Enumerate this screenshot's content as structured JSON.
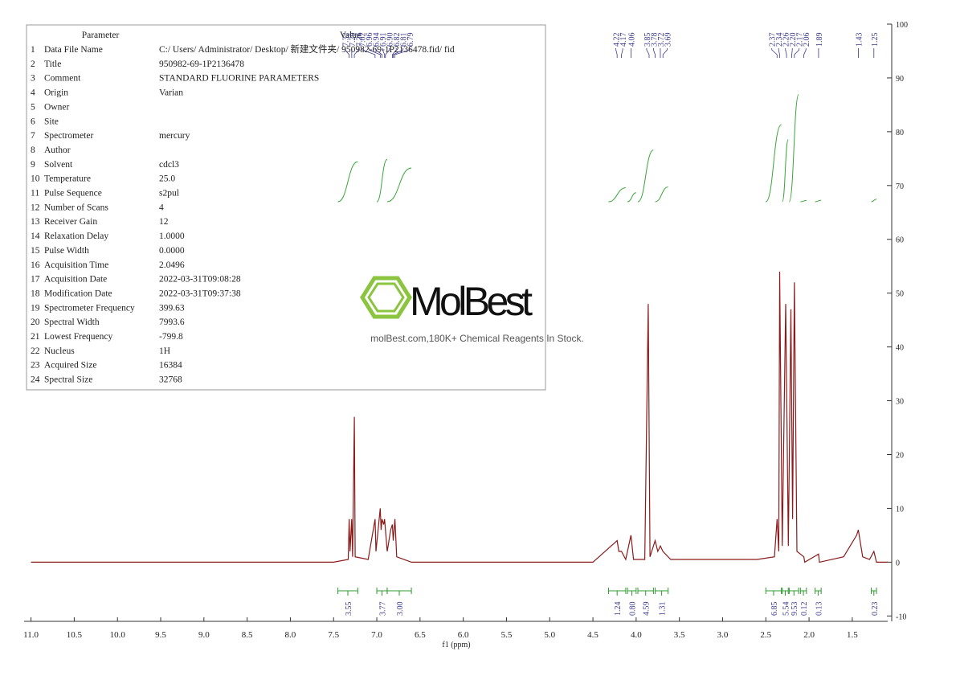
{
  "table": {
    "header": [
      "Parameter",
      "Value"
    ],
    "rows": [
      [
        "1",
        "Data File Name",
        "C:/ Users/ Administrator/ Desktop/ 新建文件夹/ 950982-69-1P2136478.fid/ fid"
      ],
      [
        "2",
        "Title",
        "950982-69-1P2136478"
      ],
      [
        "3",
        "Comment",
        "STANDARD FLUORINE PARAMETERS"
      ],
      [
        "4",
        "Origin",
        "Varian"
      ],
      [
        "5",
        "Owner"
      ],
      [
        "6",
        "Site"
      ],
      [
        "7",
        "Spectrometer",
        "mercury"
      ],
      [
        "8",
        "Author"
      ],
      [
        "9",
        "Solvent",
        "cdcl3"
      ],
      [
        "10",
        "Temperature",
        "25.0"
      ],
      [
        "11",
        "Pulse Sequence",
        "s2pul"
      ],
      [
        "12",
        "Number of Scans",
        "4"
      ],
      [
        "13",
        "Receiver Gain",
        "12"
      ],
      [
        "14",
        "Relaxation Delay",
        "1.0000"
      ],
      [
        "15",
        "Pulse Width",
        "0.0000"
      ],
      [
        "16",
        "Acquisition Time",
        "2.0496"
      ],
      [
        "17",
        "Acquisition Date",
        "2022-03-31T09:08:28"
      ],
      [
        "18",
        "Modification Date",
        "2022-03-31T09:37:38"
      ],
      [
        "19",
        "Spectrometer Frequency",
        "399.63"
      ],
      [
        "20",
        "Spectral Width",
        "7993.6"
      ],
      [
        "21",
        "Lowest Frequency",
        "-799.8"
      ],
      [
        "22",
        "Nucleus",
        "1H"
      ],
      [
        "23",
        "Acquired Size",
        "16384"
      ],
      [
        "24",
        "Spectral Size",
        "32768"
      ]
    ]
  },
  "watermark": {
    "logo": "MolBest",
    "text": "molBest.com,180K+ Chemical Reagents In Stock."
  },
  "chart_data": {
    "type": "line",
    "xlabel": "f1 (ppm)",
    "color": "#8b1a1a",
    "xlim": [
      11.08,
      1.09
    ],
    "ylim": [
      -11,
      100
    ],
    "xticks": [
      {
        "value": 11,
        "label": "11.0"
      },
      10.5,
      {
        "value": 10,
        "label": "10.0"
      },
      9.5,
      {
        "value": 9,
        "label": "9.0"
      },
      8.5,
      {
        "value": 8,
        "label": "8.0"
      },
      7.5,
      {
        "value": 7,
        "label": "7.0"
      },
      6.5,
      {
        "value": 6,
        "label": "6.0"
      },
      5.5,
      {
        "value": 5,
        "label": "5.0"
      },
      4.5,
      {
        "value": 4,
        "label": "4.0"
      },
      3.5,
      {
        "value": 3,
        "label": "3.0"
      },
      2.5,
      {
        "value": 2,
        "label": "2.0"
      },
      1.5
    ],
    "yticks": [
      -10,
      0,
      10,
      20,
      30,
      40,
      50,
      60,
      70,
      80,
      90,
      100
    ],
    "x": [
      11.0,
      7.5,
      7.33,
      7.32,
      7.31,
      7.29,
      7.28,
      7.26,
      7.25,
      7.1,
      7.02,
      7.01,
      6.96,
      6.95,
      6.94,
      6.92,
      6.91,
      6.88,
      6.84,
      6.82,
      6.81,
      6.79,
      6.77,
      6.6,
      4.5,
      4.22,
      4.2,
      4.17,
      4.12,
      4.06,
      4.03,
      3.9,
      3.86,
      3.84,
      3.78,
      3.75,
      3.72,
      3.69,
      3.6,
      2.6,
      2.4,
      2.37,
      2.35,
      2.34,
      2.31,
      2.27,
      2.24,
      2.21,
      2.19,
      2.17,
      2.14,
      2.06,
      2.05,
      1.89,
      1.88,
      1.6,
      1.45,
      1.43,
      1.38,
      1.3,
      1.25,
      1.22,
      1.09
    ],
    "values": [
      0,
      0,
      0.5,
      8,
      2,
      8,
      1,
      27,
      1,
      0.5,
      8,
      2,
      10,
      6,
      8,
      7,
      8,
      2,
      6,
      7,
      4,
      8,
      1,
      0,
      0,
      4,
      2,
      2,
      0.5,
      5,
      0.5,
      0.5,
      48,
      1,
      4,
      2,
      3,
      2,
      0.5,
      0.5,
      1,
      8,
      2,
      54,
      3,
      48,
      3,
      47,
      8,
      52,
      2,
      1,
      0,
      1.5,
      0,
      1,
      5,
      6,
      1,
      0.5,
      2,
      0,
      0
    ],
    "peak_labels": [
      7.32,
      7.29,
      7.26,
      7.02,
      6.96,
      6.94,
      6.91,
      {
        "value": 6.9,
        "label": "6.90"
      },
      6.82,
      6.81,
      6.79,
      4.22,
      4.17,
      4.06,
      3.85,
      3.78,
      3.72,
      3.69,
      2.37,
      2.34,
      2.26,
      {
        "value": 2.2,
        "label": "2.20"
      },
      2.17,
      2.06,
      1.89,
      1.43,
      1.25
    ],
    "integrals": {
      "ranges": [
        [
          7.45,
          7.22
        ],
        [
          7.0,
          6.88
        ],
        [
          6.88,
          6.6
        ],
        [
          4.32,
          4.12
        ],
        [
          4.1,
          4.0
        ],
        [
          3.98,
          3.8
        ],
        [
          3.78,
          3.63
        ],
        [
          2.5,
          2.32
        ],
        [
          2.31,
          2.24
        ],
        [
          2.23,
          2.12
        ],
        [
          2.1,
          2.03
        ],
        [
          1.93,
          1.86
        ],
        [
          1.28,
          1.22
        ]
      ],
      "values": [
        3.55,
        3.77,
        3,
        1.24,
        0.8,
        4.59,
        1.31,
        6.85,
        5.54,
        9.53,
        0.12,
        0.13,
        0.23
      ],
      "value_labels": [
        "3.55",
        "3.77",
        "3.00",
        "1.24",
        "0.80",
        "4.59",
        "1.31",
        "6.85",
        "5.54",
        "9.53",
        "0.12",
        "0.13",
        "0.23"
      ]
    }
  }
}
